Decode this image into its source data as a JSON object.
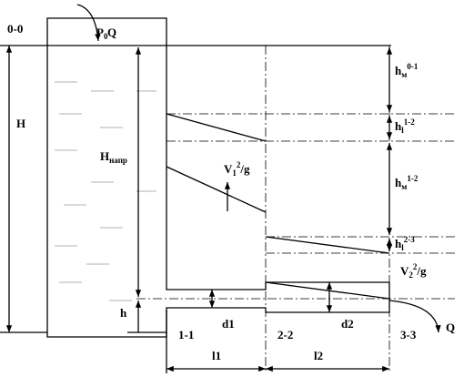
{
  "labels": {
    "level": "0-0",
    "pressure": {
      "base": "P",
      "sub": "0"
    },
    "flow_in": "Q",
    "flow_out": "Q",
    "total_head": "H",
    "pressure_head": {
      "base": "H",
      "sub": "напр"
    },
    "velocity_head_1": {
      "base": "V",
      "sub": "1",
      "sup": "2",
      "tail": "/g"
    },
    "velocity_head_2": {
      "base": "V",
      "sub": "2",
      "sup": "2",
      "tail": "/g"
    },
    "h": "h",
    "sections": [
      "1-1",
      "2-2",
      "3-3"
    ],
    "diameters": [
      "d1",
      "d2"
    ],
    "lengths": [
      "l1",
      "l2"
    ]
  },
  "losses": [
    {
      "base": "h",
      "sub": "м",
      "sup": "0-1"
    },
    {
      "base": "h",
      "sub": "l",
      "sup": "1-2"
    },
    {
      "base": "h",
      "sub": "м",
      "sup": "1-2"
    },
    {
      "base": "h",
      "sub": "l",
      "sup": "2-3"
    }
  ]
}
